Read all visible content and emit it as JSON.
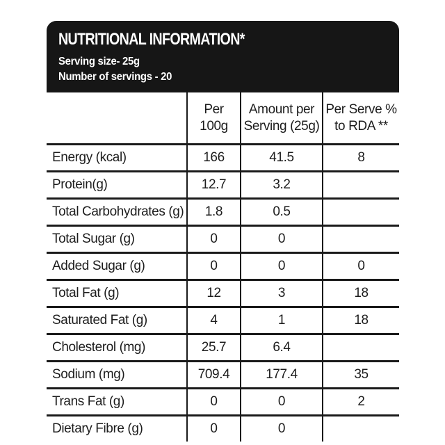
{
  "header": {
    "title": "NUTRITIONAL INFORMATION*",
    "serving_size": "Serving size- 25g",
    "number_of_servings": "Number of servings - 20"
  },
  "table": {
    "columns": [
      "",
      "Per 100g",
      "Amount per Serving (25g)",
      "Per Serve % to RDA **"
    ],
    "rows": [
      {
        "label": "Energy (kcal)",
        "per_100g": "166",
        "per_serving": "41.5",
        "rda": "8"
      },
      {
        "label": "Protein(g)",
        "per_100g": "12.7",
        "per_serving": "3.2",
        "rda": ""
      },
      {
        "label": "Total Carbohydrates (g)",
        "per_100g": "1.8",
        "per_serving": "0.5",
        "rda": ""
      },
      {
        "label": "Total Sugar (g)",
        "per_100g": "0",
        "per_serving": "0",
        "rda": ""
      },
      {
        "label": "Added Sugar (g)",
        "per_100g": "0",
        "per_serving": "0",
        "rda": "0"
      },
      {
        "label": "Total Fat (g)",
        "per_100g": "12",
        "per_serving": "3",
        "rda": "18"
      },
      {
        "label": "Saturated Fat (g)",
        "per_100g": "4",
        "per_serving": "1",
        "rda": "18"
      },
      {
        "label": "Cholesterol (mg)",
        "per_100g": "25.7",
        "per_serving": "6.4",
        "rda": ""
      },
      {
        "label": "Sodium (mg)",
        "per_100g": "709.4",
        "per_serving": "177.4",
        "rda": "35"
      },
      {
        "label": "Trans Fat (g)",
        "per_100g": "0",
        "per_serving": "0",
        "rda": "2"
      },
      {
        "label": "Dietary Fibre (g)",
        "per_100g": "0",
        "per_serving": "0",
        "rda": ""
      }
    ]
  },
  "colors": {
    "header_bg": "#161616",
    "header_text": "#ffffff",
    "grid_line": "#1a1a1a",
    "body_text": "#1d1d1d",
    "background": "#ffffff"
  }
}
